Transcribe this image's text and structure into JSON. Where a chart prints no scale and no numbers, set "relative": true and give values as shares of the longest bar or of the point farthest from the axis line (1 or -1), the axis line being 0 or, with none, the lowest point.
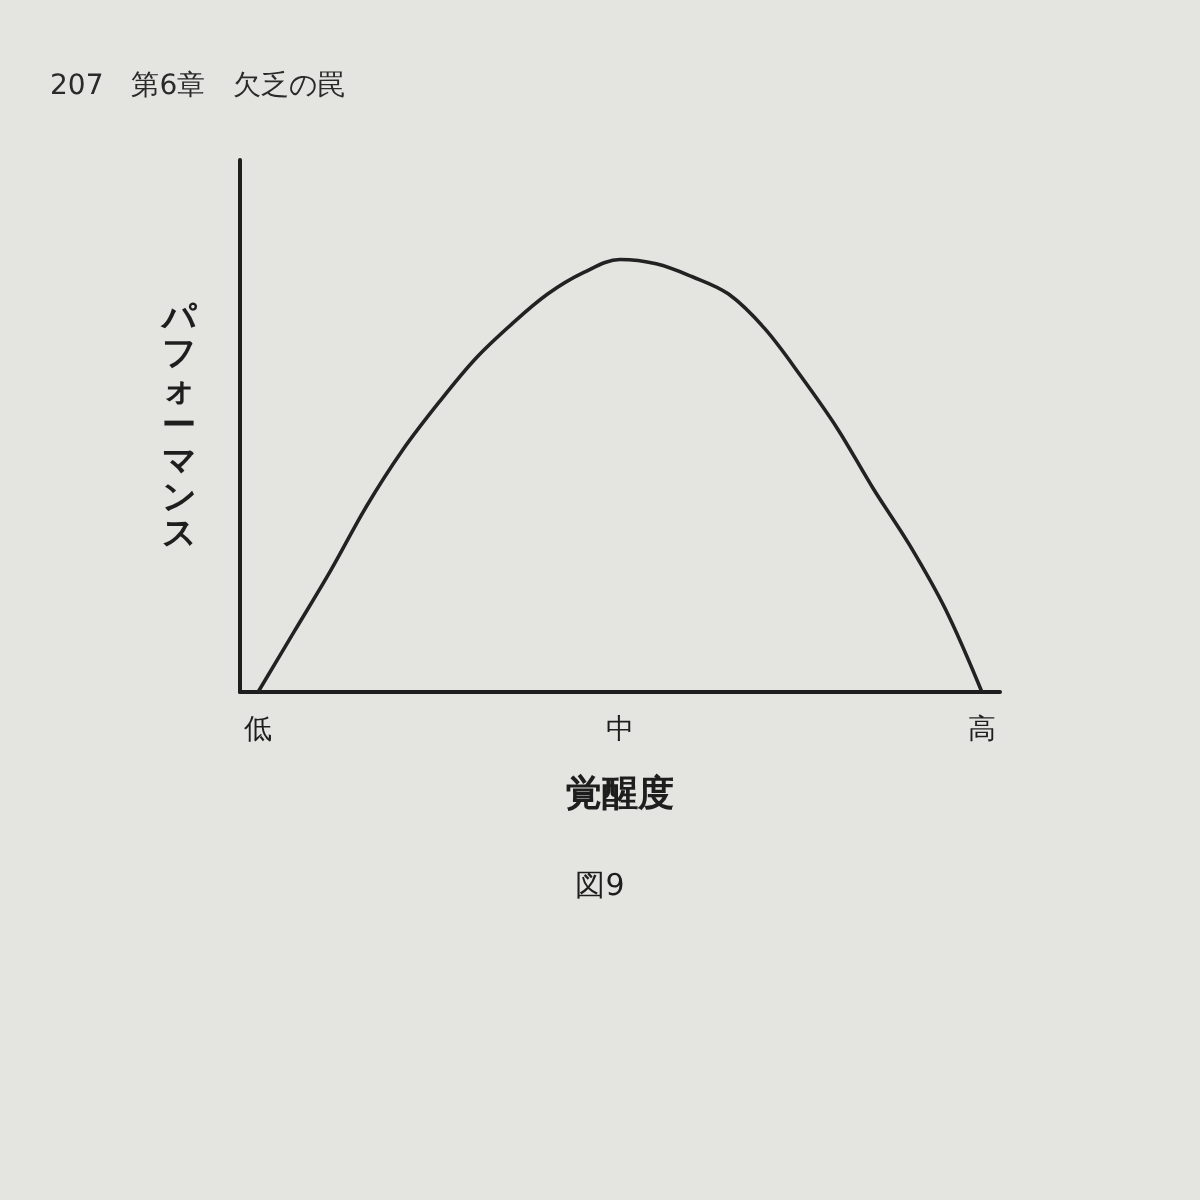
{
  "chart_data": {
    "type": "line",
    "title": "図9",
    "xlabel": "覚醒度",
    "ylabel": "パフォーマンス",
    "annotations": [
      "207　第6章　欠乏の罠"
    ],
    "categories": [
      "低",
      null,
      null,
      null,
      null,
      null,
      null,
      null,
      null,
      null,
      "中",
      null,
      null,
      null,
      null,
      null,
      null,
      null,
      null,
      null,
      "高"
    ],
    "values": [
      0,
      0.14,
      0.28,
      0.43,
      0.56,
      0.67,
      0.77,
      0.85,
      0.92,
      0.97,
      1,
      0.99,
      0.96,
      0.92,
      0.84,
      0.73,
      0.61,
      0.47,
      0.34,
      0.19,
      0
    ],
    "color": "#222222",
    "relative": true,
    "marker": "none",
    "grid": false
  }
}
